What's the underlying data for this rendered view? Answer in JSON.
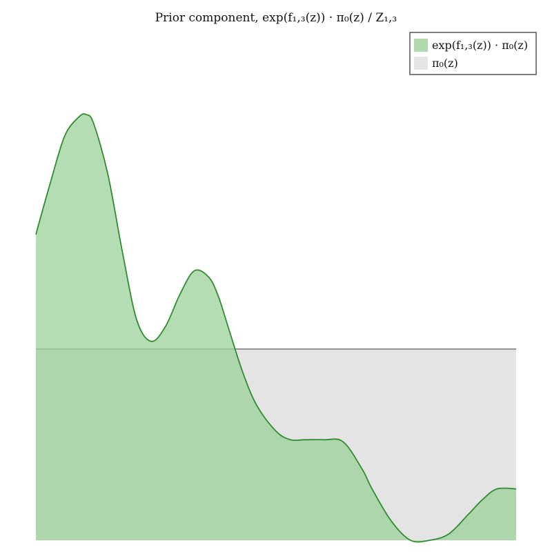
{
  "chart_data": {
    "type": "area",
    "title": "Prior component, exp(f₁,₃(z)) · π₀(z) / Z₁,₃",
    "xlabel": "",
    "ylabel": "",
    "xlim": [
      0,
      1
    ],
    "ylim": [
      0,
      1
    ],
    "grid": false,
    "axes_visible": false,
    "legend": {
      "placement": "top-right",
      "entries": [
        {
          "label": "exp(f₁,₃(z)) · π₀(z)",
          "color": "#9bd19a"
        },
        {
          "label": "π₀(z)",
          "color": "#d9d9d9"
        }
      ]
    },
    "series": [
      {
        "name": "exp(f₁,₃(z)) · π₀(z)",
        "fill": "#9bd19a",
        "line": "#2e8b2e",
        "x": [
          0.0,
          0.03,
          0.06,
          0.09,
          0.105,
          0.12,
          0.15,
          0.18,
          0.21,
          0.24,
          0.27,
          0.3,
          0.33,
          0.36,
          0.38,
          0.4,
          0.43,
          0.46,
          0.5,
          0.53,
          0.56,
          0.6,
          0.64,
          0.68,
          0.7,
          0.74,
          0.78,
          0.82,
          0.86,
          0.9,
          0.93,
          0.96,
          1.0
        ],
        "y": [
          0.715,
          0.835,
          0.945,
          0.99,
          0.995,
          0.975,
          0.855,
          0.675,
          0.515,
          0.465,
          0.5,
          0.575,
          0.63,
          0.615,
          0.57,
          0.5,
          0.395,
          0.315,
          0.255,
          0.235,
          0.235,
          0.235,
          0.23,
          0.165,
          0.12,
          0.045,
          0.0,
          0.0,
          0.015,
          0.06,
          0.095,
          0.12,
          0.12
        ]
      },
      {
        "name": "π₀(z)",
        "fill": "#d9d9d9",
        "line": "#808080",
        "x": [
          0.0,
          1.0
        ],
        "y": [
          0.447,
          0.447
        ]
      }
    ]
  }
}
